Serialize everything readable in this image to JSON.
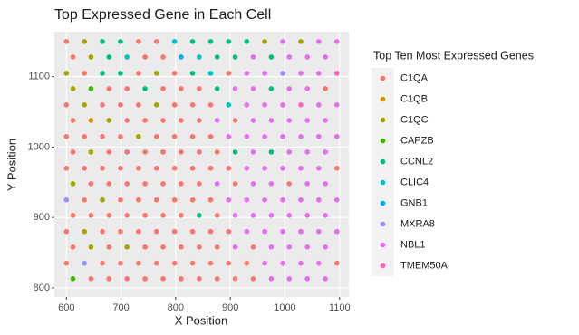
{
  "chart_data": {
    "type": "scatter",
    "title": "Top Expressed Gene in Each Cell",
    "x_label": "X Position",
    "y_label": "Y Position",
    "legend_title": "Top Ten Most Expressed Genes",
    "xlim": [
      578,
      1117
    ],
    "ylim": [
      787,
      1164
    ],
    "xticks": [
      600,
      700,
      800,
      900,
      1000,
      1100
    ],
    "yticks": [
      800,
      900,
      1000,
      1100
    ],
    "grid": true,
    "legend": "right",
    "series": [
      {
        "name": "C1QA",
        "color": "#F8766D",
        "x": [
          600,
          732,
          765,
          612,
          744,
          777,
          633,
          732,
          798,
          897,
          678,
          711,
          777,
          810,
          843,
          1074,
          600,
          666,
          699,
          732,
          798,
          831,
          864,
          612,
          711,
          744,
          777,
          810,
          843,
          909,
          600,
          633,
          666,
          699,
          765,
          798,
          831,
          864,
          612,
          678,
          711,
          744,
          777,
          810,
          843,
          876,
          600,
          633,
          666,
          699,
          732,
          765,
          798,
          831,
          864,
          897,
          1095,
          645,
          678,
          711,
          744,
          777,
          810,
          843,
          909,
          1008,
          633,
          699,
          732,
          765,
          798,
          831,
          864,
          612,
          645,
          678,
          711,
          744,
          777,
          810,
          876,
          600,
          666,
          699,
          732,
          765,
          798,
          831,
          864,
          897,
          612,
          678,
          744,
          777,
          810,
          843,
          876,
          942,
          600,
          666,
          699,
          732,
          765,
          798,
          831,
          864,
          897,
          930,
          1095,
          645,
          678,
          711,
          744,
          777,
          810,
          843,
          876,
          909,
          942
        ],
        "y": [
          1150,
          1150,
          1150,
          1128,
          1128,
          1128,
          1105,
          1105,
          1105,
          1105,
          1083,
          1083,
          1083,
          1083,
          1083,
          1083,
          1060,
          1060,
          1060,
          1060,
          1060,
          1060,
          1060,
          1038,
          1038,
          1038,
          1038,
          1038,
          1038,
          1038,
          1015,
          1015,
          1015,
          1015,
          1015,
          1015,
          1015,
          1015,
          993,
          993,
          993,
          993,
          993,
          993,
          993,
          993,
          970,
          970,
          970,
          970,
          970,
          970,
          970,
          970,
          970,
          970,
          970,
          948,
          948,
          948,
          948,
          948,
          948,
          948,
          948,
          948,
          925,
          925,
          925,
          925,
          925,
          925,
          925,
          903,
          903,
          903,
          903,
          903,
          903,
          903,
          903,
          880,
          880,
          880,
          880,
          880,
          880,
          880,
          880,
          880,
          858,
          858,
          858,
          858,
          858,
          858,
          858,
          858,
          835,
          835,
          835,
          835,
          835,
          835,
          835,
          835,
          835,
          835,
          835,
          813,
          813,
          813,
          813,
          813,
          813,
          813,
          813,
          813,
          813
        ]
      },
      {
        "name": "C1QB",
        "color": "#D89000",
        "x": [
          645
        ],
        "y": [
          1038
        ]
      },
      {
        "name": "C1QC",
        "color": "#A3A500",
        "x": [
          633,
          963,
          1029,
          645,
          600,
          765,
          612,
          633,
          765,
          678,
          732,
          645,
          612,
          666,
          633,
          645,
          711
        ],
        "y": [
          1150,
          1150,
          1150,
          1128,
          1105,
          1105,
          1083,
          1060,
          1060,
          1038,
          1015,
          993,
          948,
          925,
          880,
          858,
          858
        ]
      },
      {
        "name": "CAPZB",
        "color": "#39B600",
        "x": [
          645,
          612
        ],
        "y": [
          1083,
          813
        ]
      },
      {
        "name": "CCNL2",
        "color": "#00BF7D",
        "x": [
          666,
          699,
          831,
          864,
          897,
          930,
          678,
          876,
          909,
          975,
          666,
          699,
          831,
          744,
          876,
          975,
          909,
          975,
          843
        ],
        "y": [
          1150,
          1150,
          1150,
          1150,
          1150,
          1150,
          1128,
          1128,
          1128,
          1128,
          1105,
          1105,
          1105,
          1083,
          1083,
          1083,
          993,
          993,
          903
        ]
      },
      {
        "name": "CLIC4",
        "color": "#00BFC4",
        "x": [
          798,
          711,
          843,
          864,
          897
        ],
        "y": [
          1150,
          1128,
          1128,
          1105,
          1060
        ]
      },
      {
        "name": "GNB1",
        "color": "#00B0F6",
        "x": [
          810
        ],
        "y": [
          1128
        ]
      },
      {
        "name": "MXRA8",
        "color": "#9590FF",
        "x": [
          996,
          600,
          633
        ],
        "y": [
          1105,
          925,
          835
        ]
      },
      {
        "name": "NBL1",
        "color": "#E76BF3",
        "x": [
          996,
          1062,
          1095,
          942,
          1008,
          1041,
          1074,
          930,
          963,
          1029,
          1062,
          909,
          942,
          1008,
          1041,
          930,
          963,
          996,
          1062,
          1095,
          876,
          942,
          975,
          1008,
          1041,
          1074,
          897,
          930,
          963,
          996,
          1029,
          1062,
          1095,
          942,
          1008,
          1041,
          1074,
          930,
          963,
          996,
          1029,
          1062,
          876,
          942,
          975,
          1041,
          1074,
          897,
          930,
          963,
          996,
          1029,
          1062,
          1095,
          909,
          942,
          975,
          1008,
          1041,
          1074,
          930,
          963,
          996,
          1029,
          1062,
          1095,
          909,
          975,
          1008,
          1041,
          1074,
          963,
          996,
          1029,
          1062,
          975,
          1008,
          1041,
          1074
        ],
        "y": [
          1150,
          1150,
          1150,
          1128,
          1128,
          1128,
          1128,
          1105,
          1105,
          1105,
          1105,
          1083,
          1083,
          1083,
          1083,
          1060,
          1060,
          1060,
          1060,
          1060,
          1038,
          1038,
          1038,
          1038,
          1038,
          1038,
          1015,
          1015,
          1015,
          1015,
          1015,
          1015,
          1015,
          993,
          993,
          993,
          993,
          970,
          970,
          970,
          970,
          970,
          948,
          948,
          948,
          948,
          948,
          925,
          925,
          925,
          925,
          925,
          925,
          925,
          903,
          903,
          903,
          903,
          903,
          903,
          880,
          880,
          880,
          880,
          880,
          880,
          858,
          858,
          858,
          858,
          858,
          835,
          835,
          835,
          835,
          813,
          813,
          813,
          813
        ]
      },
      {
        "name": "TMEM50A",
        "color": "#FF62BC",
        "x": [
          1095,
          1029
        ],
        "y": [
          1105,
          1060
        ]
      }
    ]
  }
}
